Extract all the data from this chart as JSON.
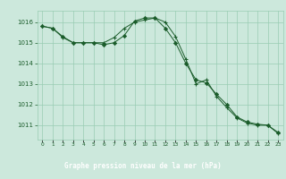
{
  "line1": [
    1015.8,
    1015.7,
    1015.3,
    1015.0,
    1015.0,
    1015.0,
    1014.9,
    1015.0,
    1015.35,
    1016.05,
    1016.2,
    1016.2,
    1015.7,
    1015.0,
    1014.0,
    1013.2,
    1013.05,
    1012.5,
    1012.0,
    1011.4,
    1011.15,
    1011.05,
    1011.0,
    1010.65
  ],
  "line2": [
    1015.8,
    1015.7,
    1015.25,
    1015.0,
    1015.0,
    1015.0,
    1015.0,
    1015.25,
    1015.7,
    1016.0,
    1016.1,
    1016.2,
    1016.0,
    1015.3,
    1014.2,
    1013.0,
    1013.2,
    1012.4,
    1011.85,
    1011.35,
    1011.1,
    1011.0,
    1011.0,
    1010.6
  ],
  "hours": [
    0,
    1,
    2,
    3,
    4,
    5,
    6,
    7,
    8,
    9,
    10,
    11,
    12,
    13,
    14,
    15,
    16,
    17,
    18,
    19,
    20,
    21,
    22,
    23
  ],
  "ylim": [
    1010.3,
    1016.55
  ],
  "yticks": [
    1011,
    1012,
    1013,
    1014,
    1015,
    1016
  ],
  "bg_color": "#cce8dc",
  "line_color": "#1a5c2a",
  "grid_color": "#99ccb3",
  "xlabel": "Graphe pression niveau de la mer (hPa)",
  "xlabel_bg": "#2d6e3e",
  "xlabel_fg": "#ffffff",
  "tick_color": "#1a5c2a"
}
